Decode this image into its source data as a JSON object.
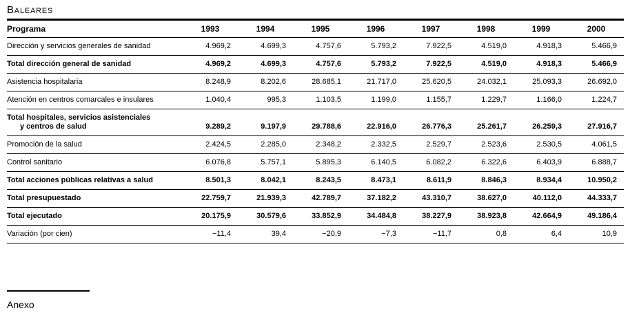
{
  "page": {
    "title": "Baleares",
    "footnote_label": "Anexo"
  },
  "colors": {
    "background": "#ffffff",
    "text": "#000000",
    "rule": "#000000"
  },
  "table": {
    "header": {
      "program_label": "Programa",
      "years": [
        "1993",
        "1994",
        "1995",
        "1996",
        "1997",
        "1998",
        "1999",
        "2000"
      ]
    },
    "rows": [
      {
        "label": "Dirección y servicios generales de sanidad",
        "bold": false,
        "values": [
          "4.969,2",
          "4.699,3",
          "4.757,6",
          "5.793,2",
          "7.922,5",
          "4.519,0",
          "4.918,3",
          "5.466,9"
        ]
      },
      {
        "label": "Total dirección general de sanidad",
        "bold": true,
        "values": [
          "4.969,2",
          "4.699,3",
          "4.757,6",
          "5.793,2",
          "7.922,5",
          "4.519,0",
          "4.918,3",
          "5.466,9"
        ]
      },
      {
        "label": "Asistencia hospitalaria",
        "bold": false,
        "values": [
          "8.248,9",
          "8.202,6",
          "28.685,1",
          "21.717,0",
          "25.620,5",
          "24.032,1",
          "25.093,3",
          "26.692,0"
        ]
      },
      {
        "label": "Atención en centros comarcales e insulares",
        "bold": false,
        "values": [
          "1.040,4",
          "995,3",
          "1.103,5",
          "1.199,0",
          "1.155,7",
          "1.229,7",
          "1.166,0",
          "1.224,7"
        ]
      },
      {
        "label": "Total hospitales, servicios asistenciales",
        "label2": "y centros de salud",
        "bold": true,
        "values": [
          "9.289,2",
          "9.197,9",
          "29.788,6",
          "22.916,0",
          "26.776,3",
          "25.261,7",
          "26.259,3",
          "27.916,7"
        ]
      },
      {
        "label": "Promoción de la salud",
        "bold": false,
        "values": [
          "2.424,5",
          "2.285,0",
          "2.348,2",
          "2.332,5",
          "2.529,7",
          "2.523,6",
          "2.530,5",
          "4.061,5"
        ]
      },
      {
        "label": "Control sanitario",
        "bold": false,
        "values": [
          "6.076,8",
          "5.757,1",
          "5.895,3",
          "6.140,5",
          "6.082,2",
          "6.322,6",
          "6.403,9",
          "6.888,7"
        ]
      },
      {
        "label": "Total acciones públicas relativas a salud",
        "bold": true,
        "values": [
          "8.501,3",
          "8.042,1",
          "8.243,5",
          "8.473,1",
          "8.611,9",
          "8.846,3",
          "8.934,4",
          "10.950,2"
        ]
      },
      {
        "label": "Total presupuestado",
        "bold": true,
        "values": [
          "22.759,7",
          "21.939,3",
          "42.789,7",
          "37.182,2",
          "43.310,7",
          "38.627,0",
          "40.112,0",
          "44.333,7"
        ]
      },
      {
        "label": "Total ejecutado",
        "bold": true,
        "values": [
          "20.175,9",
          "30.579,6",
          "33.852,9",
          "34.484,8",
          "38.227,9",
          "38.923,8",
          "42.664,9",
          "49.186,4"
        ]
      },
      {
        "label": "Variación (por cien)",
        "bold": false,
        "values": [
          "−11,4",
          "39,4",
          "−20,9",
          "−7,3",
          "−11,7",
          "0,8",
          "6,4",
          "10,9"
        ]
      }
    ]
  }
}
